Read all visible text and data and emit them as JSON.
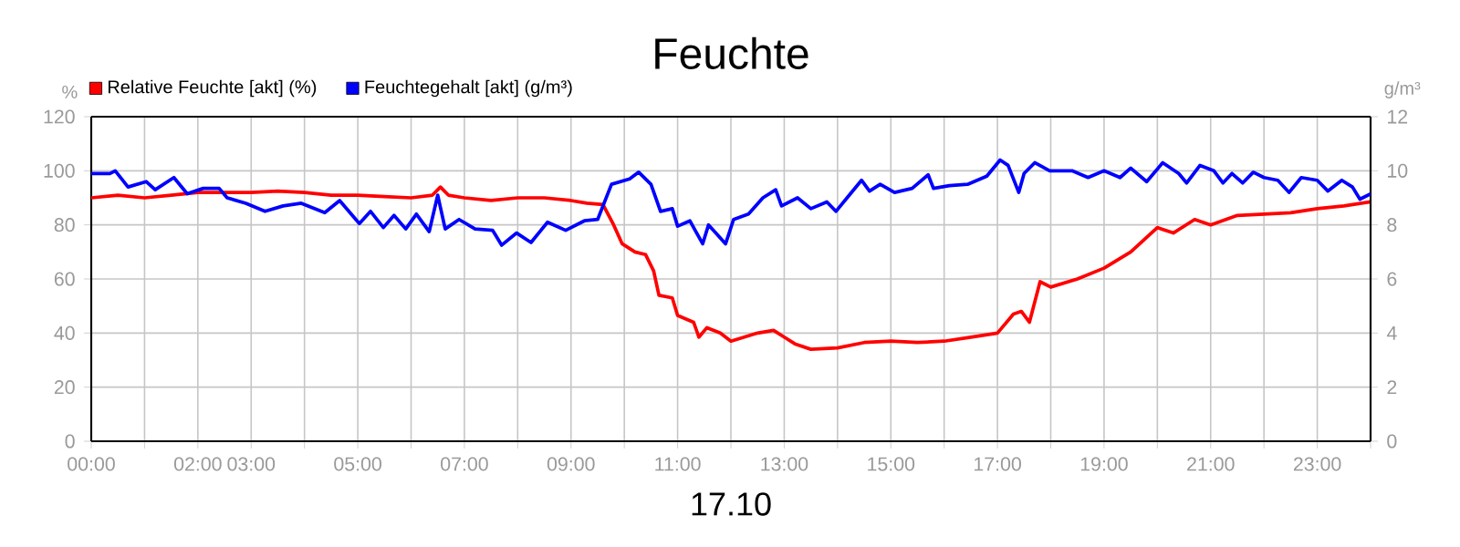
{
  "chart_data": {
    "type": "line",
    "title": "Feuchte",
    "xlabel": "17.10",
    "ylabel": "%",
    "y2label": "g/m³",
    "xlim": [
      0,
      24
    ],
    "ylim": [
      0,
      120
    ],
    "y2lim": [
      0,
      12
    ],
    "xticks": [
      {
        "value": 0,
        "label": "00:00"
      },
      {
        "value": 1,
        "label": null
      },
      {
        "value": 2,
        "label": "02:00"
      },
      {
        "value": 3,
        "label": "03:00"
      },
      {
        "value": 4,
        "label": null
      },
      {
        "value": 5,
        "label": "05:00"
      },
      {
        "value": 6,
        "label": null
      },
      {
        "value": 7,
        "label": "07:00"
      },
      {
        "value": 8,
        "label": null
      },
      {
        "value": 9,
        "label": "09:00"
      },
      {
        "value": 10,
        "label": null
      },
      {
        "value": 11,
        "label": "11:00"
      },
      {
        "value": 12,
        "label": null
      },
      {
        "value": 13,
        "label": "13:00"
      },
      {
        "value": 14,
        "label": null
      },
      {
        "value": 15,
        "label": "15:00"
      },
      {
        "value": 16,
        "label": null
      },
      {
        "value": 17,
        "label": "17:00"
      },
      {
        "value": 18,
        "label": null
      },
      {
        "value": 19,
        "label": "19:00"
      },
      {
        "value": 20,
        "label": null
      },
      {
        "value": 21,
        "label": "21:00"
      },
      {
        "value": 22,
        "label": null
      },
      {
        "value": 23,
        "label": "23:00"
      },
      {
        "value": 24,
        "label": null
      }
    ],
    "yticks": [
      0,
      20,
      40,
      60,
      80,
      100,
      120
    ],
    "y2ticks": [
      0,
      2,
      4,
      6,
      8,
      10,
      12
    ],
    "grid": true,
    "legend": "top left",
    "series": [
      {
        "name": "Relative Feuchte [akt] (%)",
        "color": "#ff0000",
        "x": [
          0,
          0.5,
          1,
          1.5,
          2,
          2.5,
          3,
          3.5,
          4,
          4.5,
          5,
          5.5,
          6,
          6.4,
          6.55,
          6.7,
          7,
          7.5,
          8,
          8.5,
          9,
          9.3,
          9.6,
          9.8,
          9.96,
          10.2,
          10.4,
          10.55,
          10.65,
          10.9,
          11.0,
          11.3,
          11.4,
          11.55,
          11.8,
          12,
          12.5,
          12.8,
          13,
          13.2,
          13.5,
          14,
          14.5,
          15,
          15.5,
          16,
          16.5,
          17,
          17.3,
          17.45,
          17.6,
          17.8,
          18,
          18.5,
          19,
          19.5,
          20,
          20.3,
          20.7,
          21,
          21.5,
          22,
          22.5,
          23,
          23.5,
          24
        ],
        "values": [
          90,
          91,
          90,
          91,
          92,
          92,
          92,
          92.5,
          92,
          91,
          91,
          90.5,
          90,
          91,
          94,
          91,
          90,
          89,
          90,
          90,
          89,
          88,
          87.5,
          80,
          73,
          70,
          69,
          63,
          54,
          53,
          46.5,
          44,
          38.5,
          42,
          40,
          37,
          40,
          41,
          38.5,
          36,
          34,
          34.5,
          36.5,
          37,
          36.5,
          37,
          38.5,
          40,
          47,
          48,
          44,
          59,
          57,
          60,
          64,
          70,
          79,
          77,
          82,
          80,
          83.5,
          84,
          84.5,
          86,
          87,
          88.5
        ]
      },
      {
        "name": "Feuchtegehalt [akt] (g/m³)",
        "color": "#0000ff",
        "axis": "y2",
        "x": [
          0,
          0.35,
          0.45,
          0.69,
          1.03,
          1.2,
          1.55,
          1.8,
          2.1,
          2.4,
          2.55,
          2.9,
          3.26,
          3.6,
          3.94,
          4.38,
          4.66,
          5.03,
          5.24,
          5.48,
          5.68,
          5.9,
          6.1,
          6.34,
          6.5,
          6.64,
          6.9,
          7.2,
          7.53,
          7.7,
          7.98,
          8.25,
          8.56,
          8.9,
          9.25,
          9.5,
          9.76,
          10.1,
          10.27,
          10.5,
          10.68,
          10.9,
          11.0,
          11.23,
          11.47,
          11.58,
          11.9,
          12.05,
          12.33,
          12.6,
          12.84,
          12.95,
          13.25,
          13.5,
          13.8,
          13.97,
          14.2,
          14.45,
          14.6,
          14.8,
          15.07,
          15.4,
          15.7,
          15.8,
          16.1,
          16.44,
          16.8,
          17.05,
          17.2,
          17.4,
          17.5,
          17.7,
          17.98,
          18.4,
          18.7,
          19,
          19.3,
          19.5,
          19.8,
          20.1,
          20.4,
          20.55,
          20.8,
          21.06,
          21.23,
          21.4,
          21.6,
          21.8,
          22,
          22.26,
          22.47,
          22.7,
          23,
          23.2,
          23.46,
          23.66,
          23.8,
          24
        ],
        "values": [
          9.9,
          9.9,
          10.0,
          9.4,
          9.6,
          9.3,
          9.75,
          9.15,
          9.35,
          9.35,
          9.0,
          8.8,
          8.5,
          8.7,
          8.8,
          8.45,
          8.9,
          8.05,
          8.5,
          7.9,
          8.35,
          7.85,
          8.4,
          7.75,
          9.1,
          7.85,
          8.2,
          7.85,
          7.8,
          7.25,
          7.7,
          7.35,
          8.1,
          7.8,
          8.15,
          8.2,
          9.5,
          9.7,
          9.95,
          9.5,
          8.5,
          8.6,
          7.95,
          8.15,
          7.3,
          8.0,
          7.3,
          8.2,
          8.4,
          9.0,
          9.3,
          8.7,
          9.0,
          8.6,
          8.85,
          8.5,
          9.05,
          9.65,
          9.25,
          9.5,
          9.2,
          9.35,
          9.85,
          9.35,
          9.45,
          9.5,
          9.8,
          10.4,
          10.2,
          9.2,
          9.9,
          10.3,
          10.0,
          10.0,
          9.75,
          10.0,
          9.75,
          10.1,
          9.6,
          10.3,
          9.9,
          9.55,
          10.2,
          10.0,
          9.55,
          9.9,
          9.55,
          9.95,
          9.75,
          9.65,
          9.2,
          9.75,
          9.65,
          9.25,
          9.65,
          9.4,
          8.95,
          9.15
        ]
      }
    ]
  }
}
